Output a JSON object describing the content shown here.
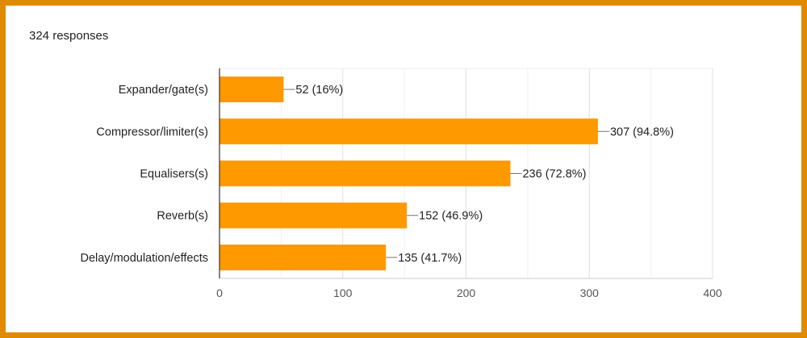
{
  "header": {
    "responses": "324 responses"
  },
  "colors": {
    "frame": "#E08A00",
    "bar": "#FF9900",
    "grid": "#E6E6E6",
    "axis": "#333333"
  },
  "chart_data": {
    "type": "bar",
    "orientation": "horizontal",
    "categories": [
      "Expander/gate(s)",
      "Compressor/limiter(s)",
      "Equalisers(s)",
      "Reverb(s)",
      "Delay/modulation/effects"
    ],
    "values": [
      52,
      307,
      236,
      152,
      135
    ],
    "data_labels": [
      "52 (16%)",
      "307 (94.8%)",
      "236 (72.8%)",
      "152 (46.9%)",
      "135 (41.7%)"
    ],
    "xlim": [
      0,
      400
    ],
    "xticks": [
      0,
      100,
      200,
      300,
      400
    ],
    "grid": true,
    "legend": "none"
  }
}
